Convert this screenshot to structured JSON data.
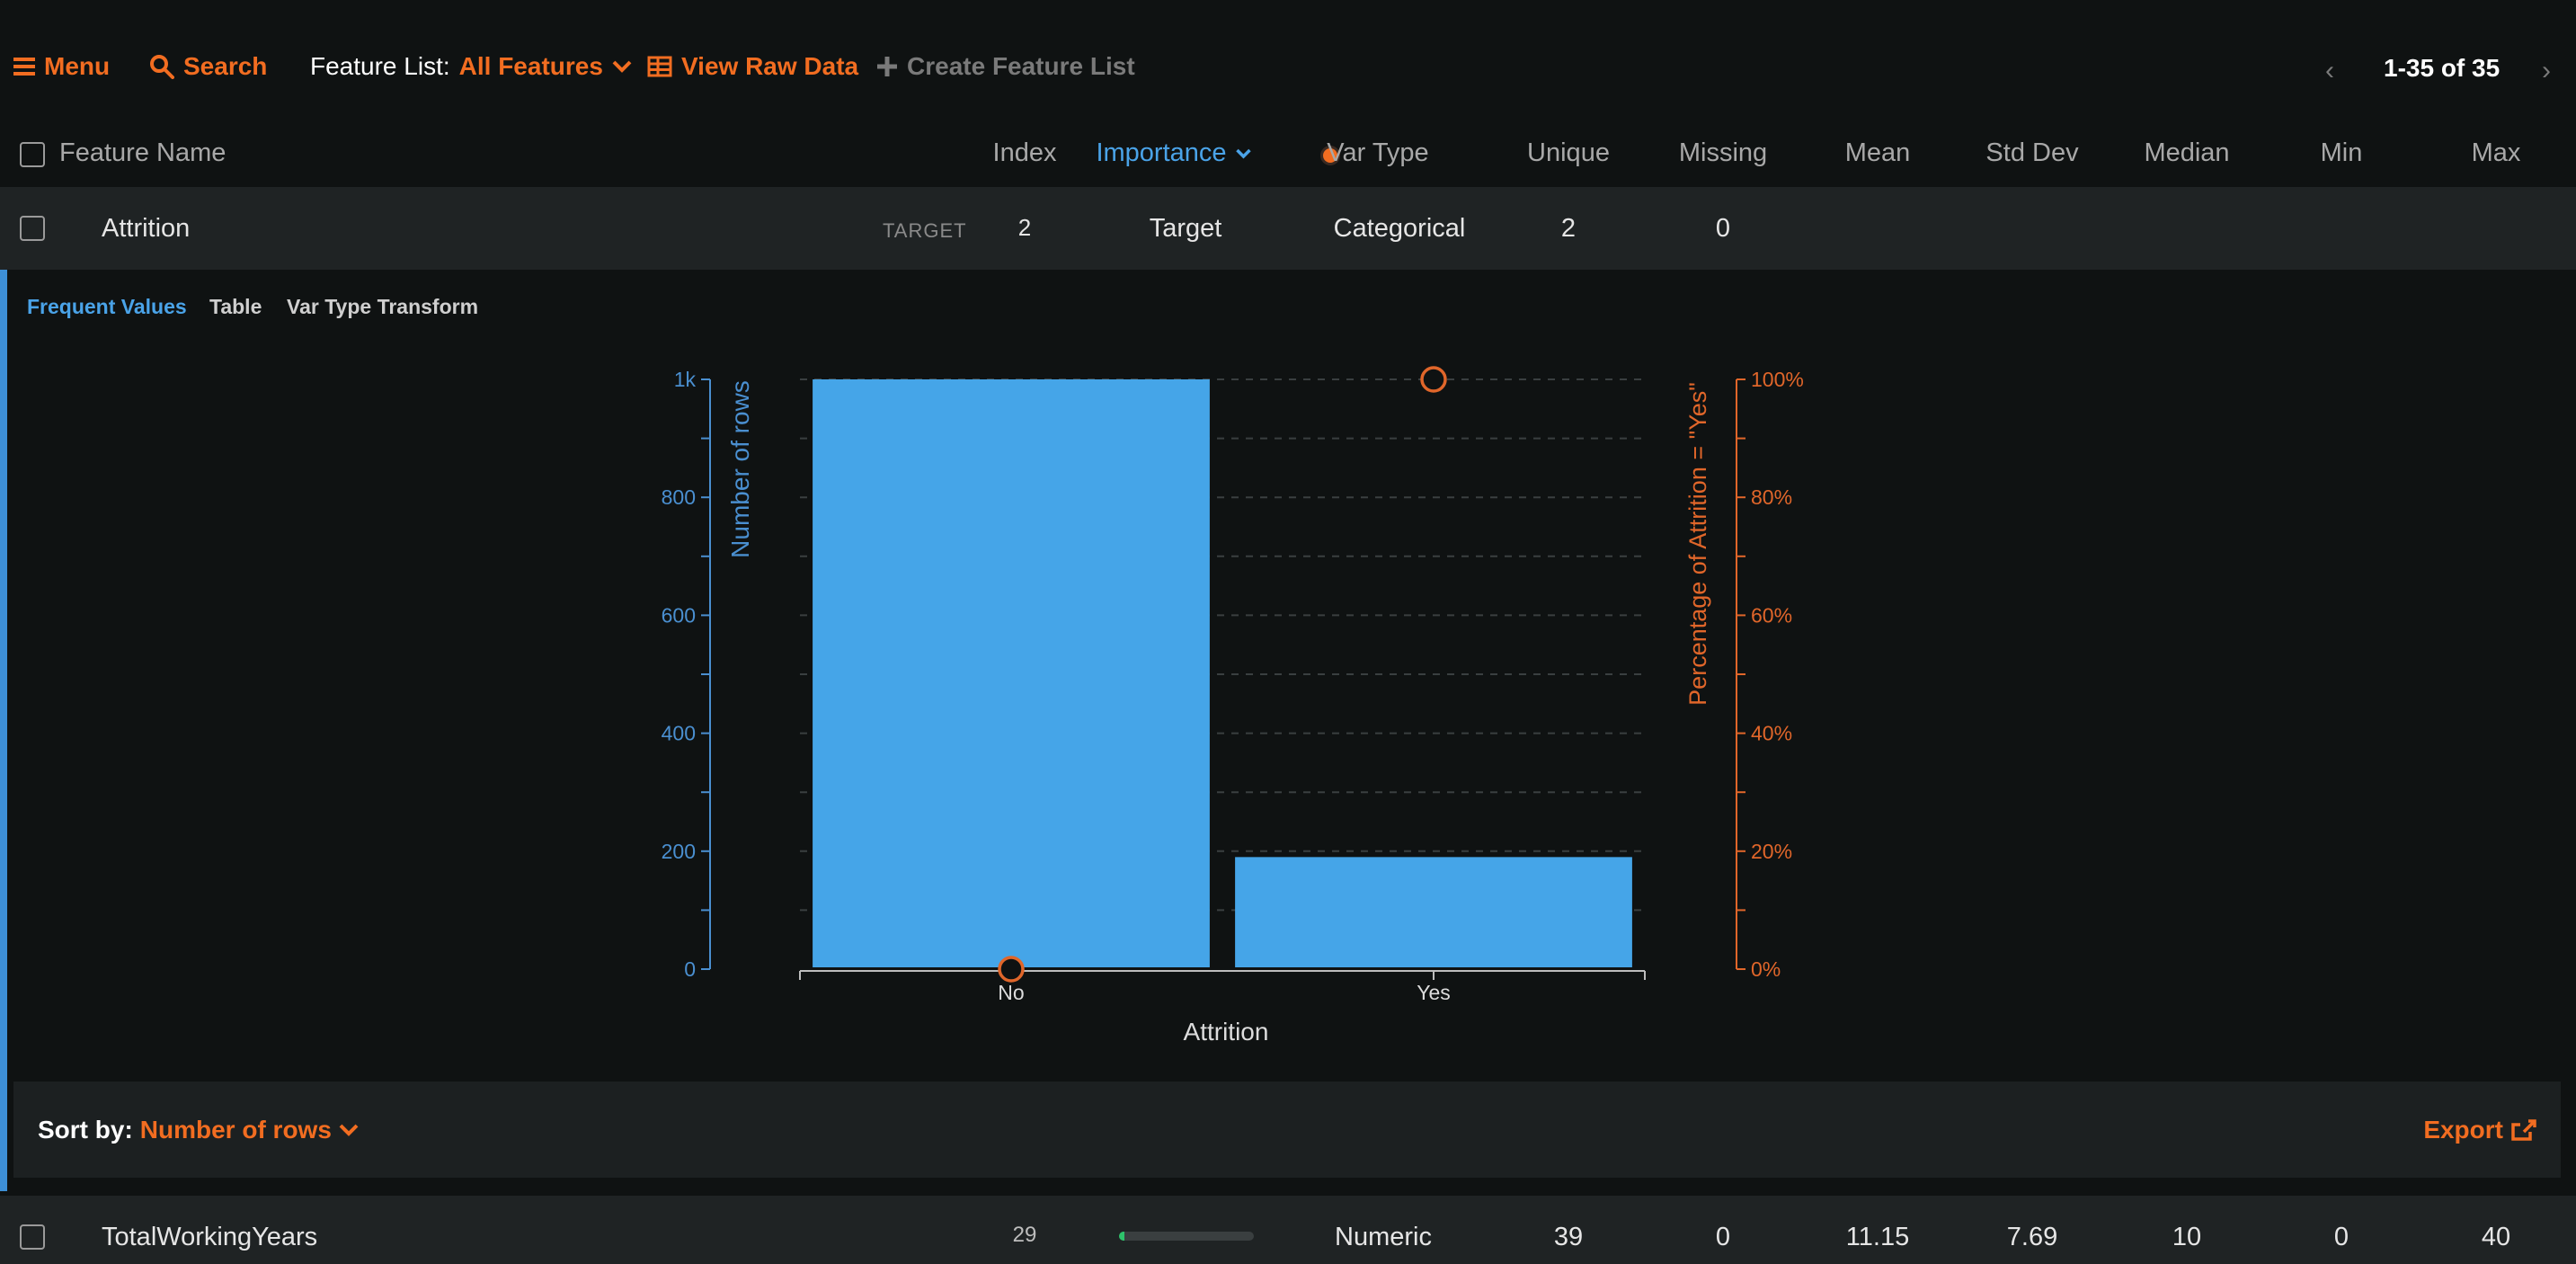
{
  "toolbar": {
    "menu_label": "Menu",
    "search_label": "Search",
    "feature_list_label": "Feature List:",
    "feature_list_value": "All Features",
    "view_raw_label": "View Raw Data",
    "create_list_label": "Create Feature List",
    "pager_text": "1-35 of 35"
  },
  "columns": {
    "feature_name": "Feature Name",
    "index": "Index",
    "importance": "Importance",
    "var_type": "Var Type",
    "unique": "Unique",
    "missing": "Missing",
    "mean": "Mean",
    "std_dev": "Std Dev",
    "median": "Median",
    "min": "Min",
    "max": "Max"
  },
  "attrition_row": {
    "name": "Attrition",
    "tag": "TARGET",
    "index": "2",
    "importance": "Target",
    "var_type": "Categorical",
    "unique": "2",
    "missing": "0"
  },
  "detail_tabs": {
    "frequent_values": "Frequent Values",
    "table": "Table",
    "var_type_transform": "Var Type Transform"
  },
  "chart_data": {
    "type": "bar",
    "categories": [
      "No",
      "Yes"
    ],
    "series": [
      {
        "name": "Number of rows",
        "values": [
          1000,
          190
        ],
        "axis": "left"
      },
      {
        "name": "Percentage of Attrition = \"Yes\"",
        "values": [
          0,
          100
        ],
        "axis": "right",
        "marker": "circle"
      }
    ],
    "xlabel": "Attrition",
    "ylabel": "Number of rows",
    "ylabel_right": "Percentage of Attrition = \"Yes\"",
    "ylim": [
      0,
      1000
    ],
    "ylim_right": [
      0,
      100
    ],
    "yticks": [
      "0",
      "200",
      "400",
      "600",
      "800",
      "1k"
    ],
    "yticks_right": [
      "0%",
      "20%",
      "40%",
      "60%",
      "80%",
      "100%"
    ],
    "grid": "dashed horizontal",
    "colors": {
      "bars": "#45a5e8",
      "left_axis": "#4a8fd0",
      "right_axis": "#e0662a"
    }
  },
  "sortbar": {
    "label": "Sort by:",
    "value": "Number of rows",
    "export_label": "Export"
  },
  "tw_row": {
    "name": "TotalWorkingYears",
    "index": "29",
    "importance": 0.04,
    "var_type": "Numeric",
    "unique": "39",
    "missing": "0",
    "mean": "11.15",
    "std_dev": "7.69",
    "median": "10",
    "min": "0",
    "max": "40"
  },
  "colors": {
    "accent": "#f26d21",
    "link": "#4aa3e8",
    "importance_bar": "#2ec36b"
  }
}
